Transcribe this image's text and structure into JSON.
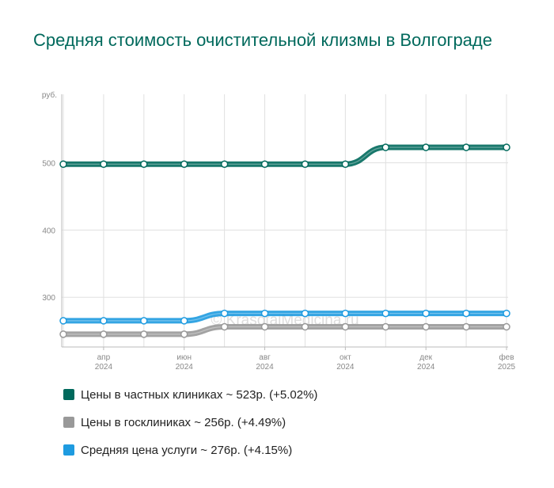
{
  "title": "Средняя стоимость очистительной клизмы в Волгограде",
  "watermark": "© KrasotaiMedicina.ru",
  "legend": [
    {
      "label": "Цены в частных клиниках ~ 523р. (+5.02%)",
      "color": "#00695c"
    },
    {
      "label": "Цены в госклиниках ~ 256р. (+4.49%)",
      "color": "#999999"
    },
    {
      "label": "Средняя цена услуги ~ 276р. (+4.15%)",
      "color": "#1e9be0"
    }
  ],
  "chart_data": {
    "type": "line",
    "ylabel": "руб.",
    "yticks": [
      300,
      400,
      500
    ],
    "ylim": [
      226,
      602
    ],
    "x": [
      "2024-03",
      "2024-04",
      "2024-05",
      "2024-06",
      "2024-07",
      "2024-08",
      "2024-09",
      "2024-10",
      "2024-11",
      "2024-12",
      "2025-01",
      "2025-02"
    ],
    "xtick_labels": [
      {
        "month": "апр",
        "year": "2024",
        "index": 1
      },
      {
        "month": "июн",
        "year": "2024",
        "index": 3
      },
      {
        "month": "авг",
        "year": "2024",
        "index": 5
      },
      {
        "month": "окт",
        "year": "2024",
        "index": 7
      },
      {
        "month": "дек",
        "year": "2024",
        "index": 9
      },
      {
        "month": "фев",
        "year": "2025",
        "index": 11
      }
    ],
    "series": [
      {
        "name": "Цены в частных клиниках",
        "color": "#00695c",
        "values": [
          498,
          498,
          498,
          498,
          498,
          498,
          498,
          498,
          523,
          523,
          523,
          523
        ]
      },
      {
        "name": "Цены в госклиниках",
        "color": "#999999",
        "values": [
          245,
          245,
          245,
          245,
          256,
          256,
          256,
          256,
          256,
          256,
          256,
          256
        ]
      },
      {
        "name": "Средняя цена услуги",
        "color": "#1e9be0",
        "values": [
          265,
          265,
          265,
          265,
          276,
          276,
          276,
          276,
          276,
          276,
          276,
          276
        ]
      }
    ],
    "grid": true
  }
}
